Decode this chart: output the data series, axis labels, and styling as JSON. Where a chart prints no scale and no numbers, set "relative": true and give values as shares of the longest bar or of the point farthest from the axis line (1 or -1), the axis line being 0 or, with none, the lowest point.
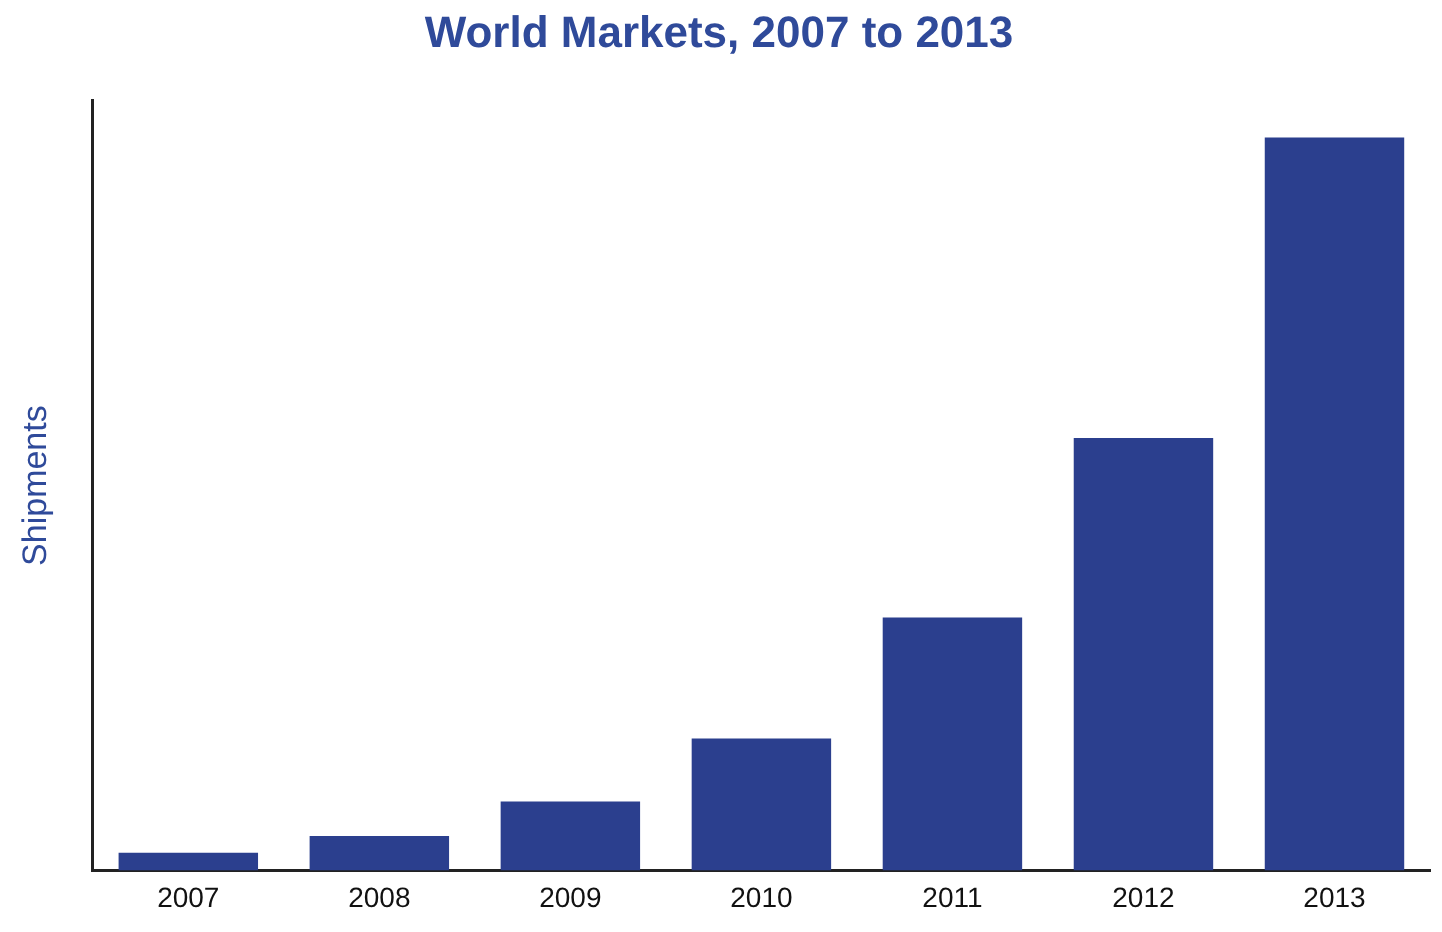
{
  "chart_data": {
    "type": "bar",
    "title": "World Markets, 2007 to 2013",
    "ylabel": "Shipments",
    "categories": [
      "2007",
      "2008",
      "2009",
      "2010",
      "2011",
      "2012",
      "2013"
    ],
    "values": [
      0.024,
      0.047,
      0.094,
      0.18,
      0.345,
      0.59,
      1
    ],
    "color": "#2b3f8e",
    "relative": true,
    "grid": false,
    "legend": false
  }
}
